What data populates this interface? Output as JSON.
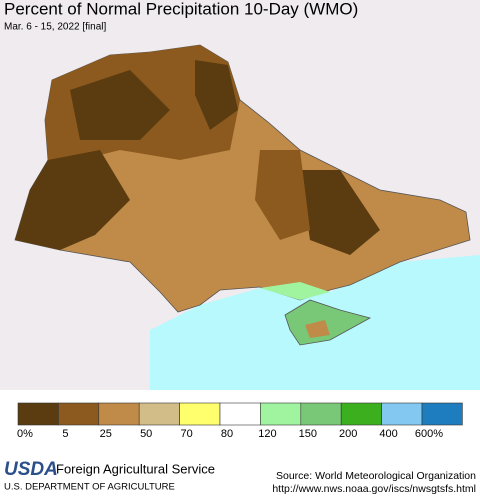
{
  "header": {
    "title": "Percent of Normal Precipitation 10-Day (WMO)",
    "subtitle": "Mar. 6 - 15, 2022 [final]"
  },
  "legend": {
    "items": [
      {
        "label": "0%",
        "color": "#5a3c10"
      },
      {
        "label": "5",
        "color": "#8c5a1e"
      },
      {
        "label": "25",
        "color": "#c08a48"
      },
      {
        "label": "50",
        "color": "#d2bd88"
      },
      {
        "label": "70",
        "color": "#ffff6e"
      },
      {
        "label": "80",
        "color": "#ffffff"
      },
      {
        "label": "120",
        "color": "#a0f4a0"
      },
      {
        "label": "150",
        "color": "#78c878"
      },
      {
        "label": "200",
        "color": "#3caf1e"
      },
      {
        "label": "400",
        "color": "#82c8f0"
      },
      {
        "label": "600%",
        "color": "#1e7dbe"
      }
    ]
  },
  "footer": {
    "logo": "USDA",
    "agency": "Foreign Agricultural Service",
    "department": "U.S. DEPARTMENT OF AGRICULTURE",
    "source": "Source: World Meteorological Organization",
    "url": "http://www.nws.noaa.gov/iscs/nwsgtsfs.html"
  }
}
